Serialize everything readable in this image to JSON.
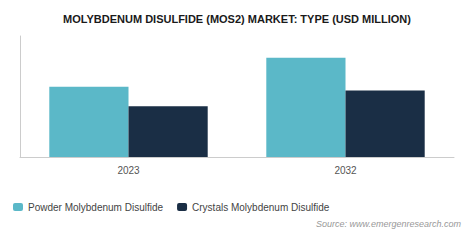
{
  "chart_data": {
    "type": "bar",
    "title": "MOLYBDENUM DISULFIDE (MOS2) MARKET: TYPE (USD MILLION)",
    "annotations": [
      "Source: www.emergenresearch.com"
    ],
    "categories": [
      "2023",
      "2032"
    ],
    "series": [
      {
        "name": "Powder Molybdenum Disulfide",
        "color": "#5BB8C8",
        "values": [
          58,
          82
        ]
      },
      {
        "name": "Crystals Molybdenum Disulfide",
        "color": "#1A2E45",
        "values": [
          42,
          55
        ]
      }
    ],
    "ylim": [
      0,
      100
    ],
    "grid": false,
    "legend": "lower left",
    "tick_labels": "x"
  }
}
